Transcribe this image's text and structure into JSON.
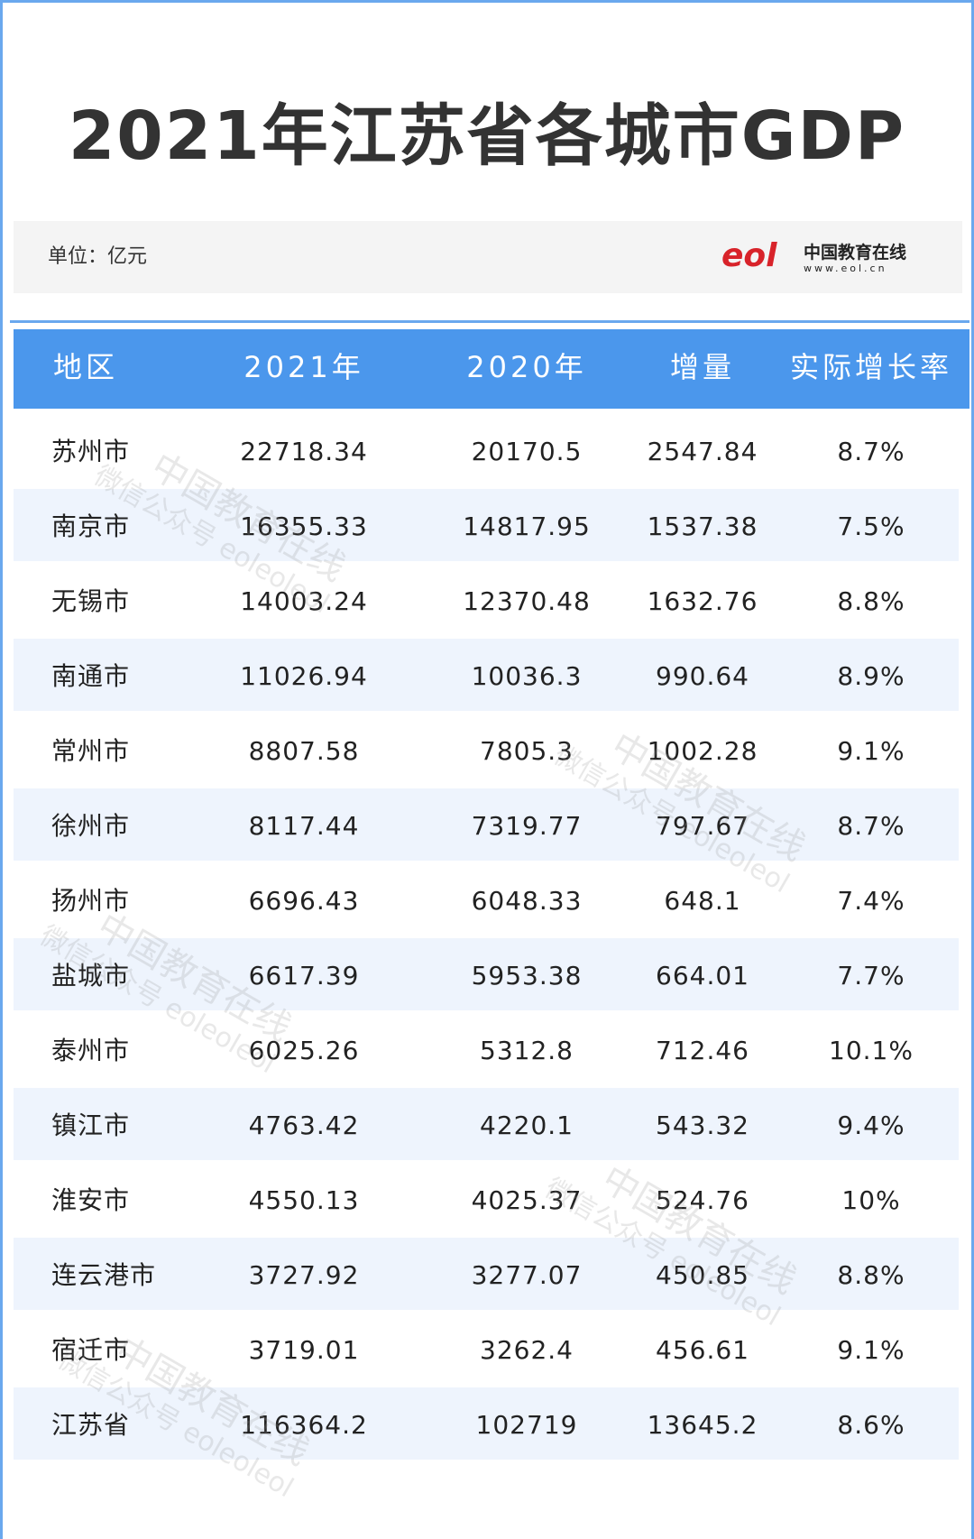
{
  "header": {
    "title": "2021年江苏省各城市GDP",
    "unit": "单位：亿元",
    "logo": {
      "mark": "eol",
      "name": "中国教育在线",
      "url": "www.eol.cn"
    }
  },
  "watermark": {
    "line1": "中国教育在线",
    "line2": "微信公众号 eoleoleol"
  },
  "table": {
    "columns": [
      "地区",
      "2021年",
      "2020年",
      "增量",
      "实际增长率"
    ],
    "rows": [
      [
        "苏州市",
        "22718.34",
        "20170.5",
        "2547.84",
        "8.7%"
      ],
      [
        "南京市",
        "16355.33",
        "14817.95",
        "1537.38",
        "7.5%"
      ],
      [
        "无锡市",
        "14003.24",
        "12370.48",
        "1632.76",
        "8.8%"
      ],
      [
        "南通市",
        "11026.94",
        "10036.3",
        "990.64",
        "8.9%"
      ],
      [
        "常州市",
        "8807.58",
        "7805.3",
        "1002.28",
        "9.1%"
      ],
      [
        "徐州市",
        "8117.44",
        "7319.77",
        "797.67",
        "8.7%"
      ],
      [
        "扬州市",
        "6696.43",
        "6048.33",
        "648.1",
        "7.4%"
      ],
      [
        "盐城市",
        "6617.39",
        "5953.38",
        "664.01",
        "7.7%"
      ],
      [
        "泰州市",
        "6025.26",
        "5312.8",
        "712.46",
        "10.1%"
      ],
      [
        "镇江市",
        "4763.42",
        "4220.1",
        "543.32",
        "9.4%"
      ],
      [
        "淮安市",
        "4550.13",
        "4025.37",
        "524.76",
        "10%"
      ],
      [
        "连云港市",
        "3727.92",
        "3277.07",
        "450.85",
        "8.8%"
      ],
      [
        "宿迁市",
        "3719.01",
        "3262.4",
        "456.61",
        "9.1%"
      ],
      [
        "江苏省",
        "116364.2",
        "102719",
        "13645.2",
        "8.6%"
      ]
    ]
  }
}
